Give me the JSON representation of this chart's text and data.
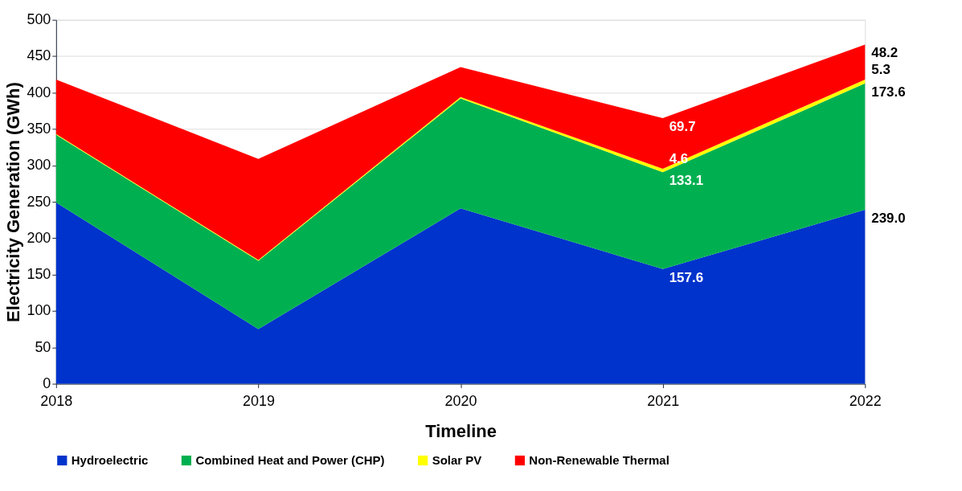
{
  "chart_data": {
    "type": "area",
    "stacked": true,
    "xlabel": "Timeline",
    "ylabel": "Electricity Generation (GWh)",
    "categories": [
      "2018",
      "2019",
      "2020",
      "2021",
      "2022"
    ],
    "ylim": [
      0,
      500
    ],
    "yticks": [
      0,
      50,
      100,
      150,
      200,
      250,
      300,
      350,
      400,
      450,
      500
    ],
    "grid": "y",
    "legend": "bottom",
    "series": [
      {
        "name": "Hydroelectric",
        "color": "#0033cc",
        "values": [
          249,
          75,
          241,
          157.6,
          239.0
        ],
        "value_labels": [
          null,
          null,
          null,
          "157.6",
          "239.0"
        ]
      },
      {
        "name": "Combined Heat and Power (CHP)",
        "color": "#00b050",
        "values": [
          93,
          94,
          151,
          133.1,
          173.6
        ],
        "value_labels": [
          null,
          null,
          null,
          "133.1",
          "173.6"
        ]
      },
      {
        "name": "Solar PV",
        "color": "#ffff00",
        "values": [
          1,
          1,
          2,
          4.6,
          5.3
        ],
        "value_labels": [
          null,
          null,
          null,
          "4.6",
          "5.3"
        ]
      },
      {
        "name": "Non-Renewable Thermal",
        "color": "#ff0000",
        "values": [
          75,
          139,
          41,
          69.7,
          48.2
        ],
        "value_labels": [
          null,
          null,
          null,
          "69.7",
          "48.2"
        ]
      }
    ]
  }
}
